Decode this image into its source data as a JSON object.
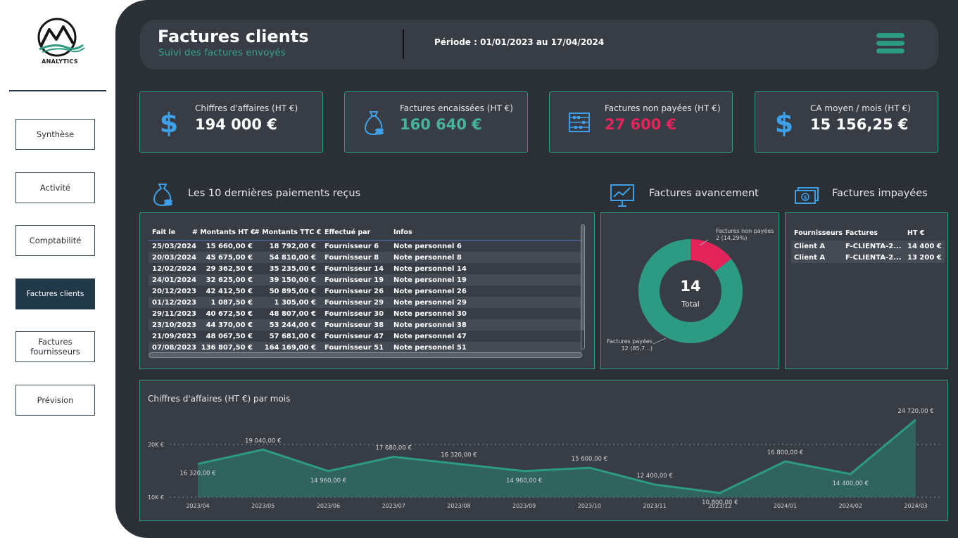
{
  "sidebar": {
    "logo_text": "ANALYTICS",
    "nav": [
      {
        "label": "Synthèse"
      },
      {
        "label": "Activité"
      },
      {
        "label": "Comptabilité"
      },
      {
        "label": "Factures clients",
        "active": true
      },
      {
        "label": "Factures\nfournisseurs"
      },
      {
        "label": "Prévision"
      }
    ]
  },
  "header": {
    "title": "Factures clients",
    "subtitle": "Suivi des factures envoyés",
    "period": "Période : 01/01/2023 au 17/04/2024"
  },
  "colors": {
    "accent": "#2d9a84",
    "negative": "#e3245a",
    "background": "#2b3037",
    "card": "#383d45"
  },
  "kpis": [
    {
      "label": "Chiffres d'affaires (HT €)",
      "value": "194 000 €",
      "color": "#ffffff",
      "icon": "dollar-icon"
    },
    {
      "label": "Factures encaissées (HT €)",
      "value": "160 640 €",
      "color": "#46b29a",
      "icon": "money-bag-icon"
    },
    {
      "label": "Factures non payées (HT €)",
      "value": "27 600 €",
      "color": "#e3245a",
      "icon": "abacus-icon"
    },
    {
      "label": "CA moyen / mois (HT €)",
      "value": "15 156,25 €",
      "color": "#ffffff",
      "icon": "dollar-icon"
    }
  ],
  "payments": {
    "title": "Les 10 dernières paiements reçus",
    "columns": [
      "Fait le",
      "# Montants HT €",
      "# Montants TTC €",
      "Effectué par",
      "Infos"
    ],
    "rows": [
      [
        "25/03/2024",
        "15 660,00 €",
        "18 792,00 €",
        "Fournisseur 6",
        "Note personnel 6"
      ],
      [
        "20/03/2024",
        "45 675,00 €",
        "54 810,00 €",
        "Fournisseur 8",
        "Note personnel 8"
      ],
      [
        "12/02/2024",
        "29 362,50 €",
        "35 235,00 €",
        "Fournisseur 14",
        "Note personnel 14"
      ],
      [
        "24/01/2024",
        "32 625,00 €",
        "39 150,00 €",
        "Fournisseur 19",
        "Note personnel 19"
      ],
      [
        "20/12/2023",
        "42 412,50 €",
        "50 895,00 €",
        "Fournisseur 26",
        "Note personnel 26"
      ],
      [
        "01/12/2023",
        "1 087,50 €",
        "1 305,00 €",
        "Fournisseur 29",
        "Note personnel 29"
      ],
      [
        "29/11/2023",
        "40 672,50 €",
        "48 807,00 €",
        "Fournisseur 30",
        "Note personnel 30"
      ],
      [
        "23/10/2023",
        "44 370,00 €",
        "53 244,00 €",
        "Fournisseur 38",
        "Note personnel 38"
      ],
      [
        "21/09/2023",
        "48 067,50 €",
        "57 681,00 €",
        "Fournisseur 47",
        "Note personnel 47"
      ],
      [
        "07/08/2023",
        "136 807,50 €",
        "164 169,00 €",
        "Fournisseur 51",
        "Note personnel 51"
      ]
    ]
  },
  "progress": {
    "title": "Factures avancement",
    "total_value": "14",
    "total_label": "Total",
    "slice_unpaid_label_1": "Factures non payées",
    "slice_unpaid_label_2": "2 (14,29%)",
    "slice_paid_label_1": "Factures payées",
    "slice_paid_label_2": "12 (85,7...)"
  },
  "unpaid": {
    "title": "Factures impayées",
    "columns": [
      "Fournisseurs",
      "Factures",
      "HT €"
    ],
    "rows": [
      [
        "Client A",
        "F-CLIENTA-2...",
        "14 400 €"
      ],
      [
        "Client A",
        "F-CLIENTA-2...",
        "13 200 €"
      ]
    ]
  },
  "chart_data": [
    {
      "type": "pie",
      "title": "Factures avancement",
      "categories": [
        "Factures payées",
        "Factures non payées"
      ],
      "values": [
        12,
        2
      ],
      "colors": [
        "#2d9a84",
        "#e3245a"
      ]
    },
    {
      "type": "area",
      "title": "Chiffres d'affaires (HT €) par mois",
      "x": [
        "2023/04",
        "2023/05",
        "2023/06",
        "2023/07",
        "2023/08",
        "2023/09",
        "2023/10",
        "2023/11",
        "2023/12",
        "2024/01",
        "2024/02",
        "2024/03"
      ],
      "values": [
        16320,
        19040,
        14960,
        17680,
        16320,
        14960,
        15600,
        12400,
        10800,
        16800,
        14400,
        24720
      ],
      "data_labels": [
        "16 320,00 €",
        "19 040,00 €",
        "14 960,00 €",
        "17 680,00 €",
        "16 320,00 €",
        "14 960,00 €",
        "15 600,00 €",
        "12 400,00 €",
        "10 800,00 €",
        "16 800,00 €",
        "14 400,00 €",
        "24 720,00 €"
      ],
      "yticks": [
        10000,
        20000
      ],
      "ytick_labels": [
        "10K €",
        "20K €"
      ],
      "ylim": [
        10000,
        25500
      ],
      "color": "#2d9a84",
      "grid": true
    }
  ]
}
